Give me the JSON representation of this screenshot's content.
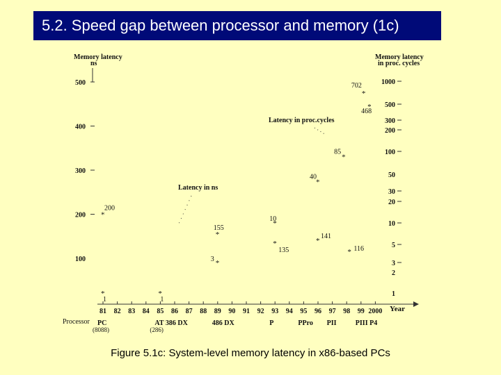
{
  "slide": {
    "title": "5.2. Speed gap between processor and memory (1c)",
    "caption": "Figure 5.1c: System-level memory latency in x86-based PCs"
  },
  "chart_data": {
    "type": "scatter",
    "title": "",
    "left_axis": {
      "label_line1": "Memory latency",
      "label_line2": "ns",
      "ticks": [
        {
          "value": 500,
          "label": "500"
        },
        {
          "value": 400,
          "label": "400"
        },
        {
          "value": 300,
          "label": "300"
        },
        {
          "value": 200,
          "label": "200"
        },
        {
          "value": 100,
          "label": "100"
        }
      ]
    },
    "right_axis": {
      "label_line1": "Memory latency",
      "label_line2": "in proc. cycles",
      "ticks": [
        {
          "value": 1000,
          "label": "1000"
        },
        {
          "value": 500,
          "label": "500"
        },
        {
          "value": 300,
          "label": "300"
        },
        {
          "value": 200,
          "label": "200"
        },
        {
          "value": 100,
          "label": "100"
        },
        {
          "value": 50,
          "label": "50"
        },
        {
          "value": 30,
          "label": "30"
        },
        {
          "value": 20,
          "label": "20"
        },
        {
          "value": 10,
          "label": "10"
        },
        {
          "value": 5,
          "label": "5"
        },
        {
          "value": 3,
          "label": "3"
        },
        {
          "value": 2,
          "label": "2"
        },
        {
          "value": 1,
          "label": "1"
        }
      ]
    },
    "x_axis": {
      "label": "Year",
      "row_label": "Processor",
      "ticks": [
        "81",
        "82",
        "83",
        "84",
        "85",
        "86",
        "87",
        "88",
        "89",
        "90",
        "91",
        "92",
        "93",
        "94",
        "95",
        "96",
        "97",
        "98",
        "99",
        "2000"
      ]
    },
    "processors": [
      {
        "year": 81,
        "label": "PC",
        "sublabel": "(8088)"
      },
      {
        "year": 85,
        "label": "AT 386 DX",
        "sublabel": "(286)"
      },
      {
        "year": 89,
        "label": "486 DX",
        "sublabel": ""
      },
      {
        "year": 93,
        "label": "P",
        "sublabel": ""
      },
      {
        "year": 95,
        "label": "PPro",
        "sublabel": ""
      },
      {
        "year": 97,
        "label": "PII",
        "sublabel": ""
      },
      {
        "year": 99,
        "label": "PIII P4",
        "sublabel": ""
      }
    ],
    "series": [
      {
        "name": "Latency in ns",
        "points": [
          {
            "year": 81,
            "value": 200,
            "label": "200"
          },
          {
            "year": 89,
            "value": 155,
            "label": "155"
          },
          {
            "year": 93,
            "value": 135,
            "label": "135"
          },
          {
            "year": 96,
            "value": 141,
            "label": "141"
          },
          {
            "year": 98.2,
            "value": 116,
            "label": "116"
          }
        ]
      },
      {
        "name": "Latency in proc.cycles",
        "points": [
          {
            "year": 81,
            "value": 1,
            "label": "1"
          },
          {
            "year": 85,
            "value": 1,
            "label": "1"
          },
          {
            "year": 89,
            "value": 3,
            "label": "3"
          },
          {
            "year": 93,
            "value": 10,
            "label": "10"
          },
          {
            "year": 96,
            "value": 40,
            "label": "40"
          },
          {
            "year": 97.8,
            "value": 85,
            "label": "85"
          },
          {
            "year": 99.2,
            "value": 702,
            "label": "702"
          },
          {
            "year": 99.6,
            "value": 468,
            "label": "468"
          }
        ]
      }
    ]
  }
}
